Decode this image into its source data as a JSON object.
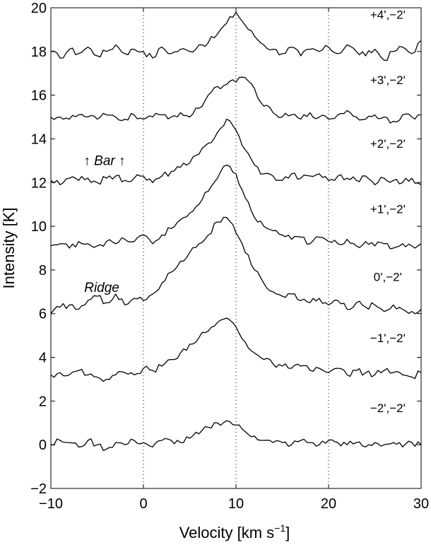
{
  "chart_data": {
    "type": "line",
    "xlabel": "Velocity [km s",
    "xlabel_exp": "−1",
    "xlabel_close": "]",
    "ylabel": "Intensity [K]",
    "xlim": [
      -10,
      30
    ],
    "ylim": [
      -2,
      20
    ],
    "x_ticks": [
      -10,
      0,
      10,
      20,
      30
    ],
    "x_tick_labels": [
      "−10",
      "0",
      "10",
      "20",
      "30"
    ],
    "y_ticks": [
      -2,
      0,
      2,
      4,
      6,
      8,
      10,
      12,
      14,
      16,
      18,
      20
    ],
    "y_tick_labels": [
      "−2",
      "0",
      "2",
      "4",
      "6",
      "8",
      "10",
      "12",
      "14",
      "16",
      "18",
      "20"
    ],
    "reference_lines_x": [
      0,
      10,
      20
    ],
    "grid": false,
    "line_color": "#000000",
    "x": [
      -10,
      -9,
      -8,
      -7,
      -6,
      -5,
      -4,
      -3,
      -2,
      -1,
      0,
      1,
      2,
      3,
      4,
      5,
      6,
      7,
      8,
      9,
      10,
      11,
      12,
      13,
      14,
      15,
      16,
      17,
      18,
      19,
      20,
      21,
      22,
      23,
      24,
      25,
      26,
      27,
      28,
      29,
      30
    ],
    "series": [
      {
        "label": "+4',−2'",
        "values": [
          18.0,
          17.7,
          18.1,
          17.9,
          18.2,
          17.8,
          18.0,
          18.3,
          17.9,
          18.1,
          18.0,
          17.7,
          18.2,
          17.9,
          18.1,
          18.0,
          18.3,
          18.4,
          18.8,
          19.3,
          19.8,
          19.2,
          18.7,
          18.3,
          18.1,
          17.9,
          18.2,
          17.8,
          18.1,
          18.0,
          18.2,
          17.9,
          18.3,
          18.0,
          17.8,
          18.1,
          17.6,
          18.0,
          18.2,
          17.9,
          18.5
        ]
      },
      {
        "label": "+3',−2'",
        "values": [
          15.0,
          15.0,
          14.9,
          15.1,
          15.0,
          14.9,
          15.1,
          15.0,
          14.9,
          15.1,
          14.9,
          15.0,
          15.1,
          15.0,
          15.2,
          15.0,
          15.4,
          16.0,
          16.4,
          16.5,
          16.6,
          16.8,
          16.3,
          15.5,
          15.2,
          15.0,
          15.1,
          14.9,
          15.2,
          15.0,
          14.9,
          15.1,
          15.3,
          15.0,
          14.9,
          15.1,
          15.0,
          14.8,
          15.1,
          15.0,
          15.1
        ]
      },
      {
        "label": "+2',−2'",
        "values": [
          12.1,
          11.9,
          12.2,
          12.1,
          12.2,
          12.0,
          12.2,
          12.3,
          12.1,
          12.2,
          12.3,
          12.0,
          12.3,
          12.5,
          12.7,
          12.9,
          13.3,
          13.8,
          14.3,
          14.9,
          14.4,
          13.5,
          12.8,
          12.4,
          12.3,
          12.1,
          12.4,
          12.2,
          12.3,
          12.4,
          12.1,
          12.3,
          12.2,
          12.1,
          12.3,
          11.9,
          12.2,
          12.1,
          12.0,
          12.2,
          11.9
        ]
      },
      {
        "label": "+1',−2'",
        "values": [
          9.1,
          9.2,
          9.0,
          9.3,
          9.2,
          9.1,
          9.3,
          9.2,
          9.4,
          9.3,
          9.6,
          9.2,
          9.6,
          9.9,
          10.3,
          10.6,
          11.0,
          11.6,
          12.2,
          12.8,
          12.4,
          11.3,
          10.4,
          10.0,
          9.8,
          9.6,
          9.4,
          9.5,
          9.2,
          9.5,
          9.3,
          9.2,
          9.4,
          9.1,
          9.3,
          9.1,
          9.2,
          9.0,
          9.2,
          9.1,
          9.2
        ]
      },
      {
        "label": "0',−2'",
        "values": [
          6.0,
          6.3,
          6.4,
          6.2,
          6.6,
          6.8,
          6.5,
          6.9,
          6.4,
          6.7,
          6.6,
          6.9,
          7.4,
          7.9,
          8.4,
          8.8,
          9.2,
          9.6,
          10.2,
          10.4,
          9.7,
          8.8,
          8.0,
          7.4,
          7.0,
          6.8,
          6.9,
          6.6,
          6.5,
          6.7,
          6.4,
          6.6,
          6.2,
          6.5,
          6.3,
          6.4,
          6.1,
          6.4,
          6.2,
          6.1,
          6.2
        ]
      },
      {
        "label": "−1',−2'",
        "values": [
          3.2,
          3.3,
          3.2,
          3.4,
          3.2,
          3.1,
          3.0,
          3.2,
          3.3,
          3.2,
          3.5,
          3.4,
          3.6,
          3.9,
          4.2,
          4.6,
          4.9,
          5.2,
          5.6,
          5.8,
          5.4,
          4.7,
          4.2,
          3.9,
          3.7,
          3.6,
          3.5,
          3.6,
          3.4,
          3.5,
          3.3,
          3.5,
          3.2,
          3.4,
          3.3,
          3.2,
          3.4,
          3.3,
          3.2,
          3.1,
          3.3
        ]
      },
      {
        "label": "−2',−2'",
        "values": [
          0.0,
          0.2,
          0.1,
          -0.1,
          0.2,
          0.0,
          -0.2,
          0.1,
          0.0,
          0.2,
          0.1,
          -0.1,
          0.2,
          0.2,
          0.1,
          0.3,
          0.5,
          0.8,
          1.0,
          1.1,
          0.9,
          0.6,
          0.4,
          0.2,
          0.1,
          0.1,
          0.0,
          0.2,
          0.1,
          0.0,
          0.2,
          0.1,
          0.0,
          0.1,
          -0.1,
          0.1,
          0.0,
          0.1,
          -0.1,
          0.1,
          0.0
        ]
      }
    ],
    "annotations": [
      {
        "text": "↑ Bar ↑",
        "x": -4.2,
        "y": 12.8
      },
      {
        "text": "Ridge",
        "x": -4.5,
        "y": 7.0
      }
    ]
  }
}
